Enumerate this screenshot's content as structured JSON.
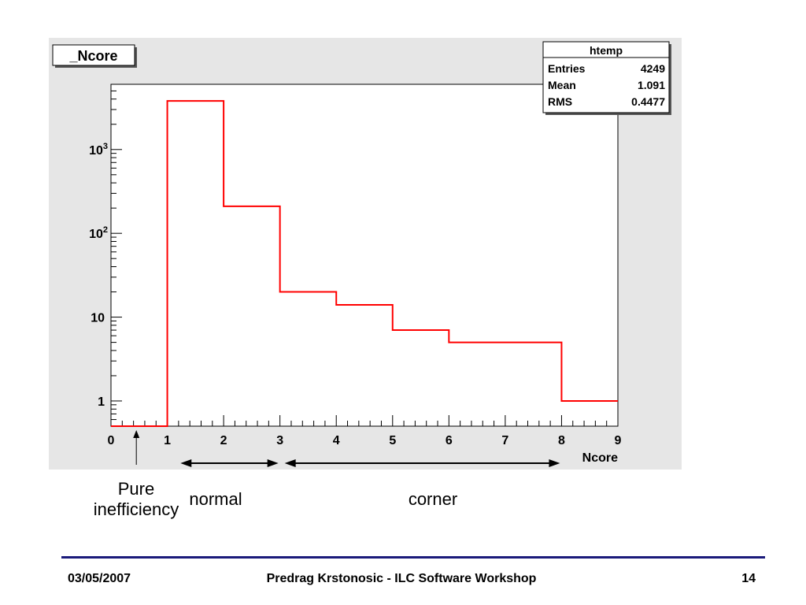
{
  "colors": {
    "canvas": "#e6e6e6",
    "frame": "#ffffff",
    "histogram": "#ff0000",
    "footer_rule": "#1a1a7a"
  },
  "chart_data": {
    "type": "histogram",
    "title": "_Ncore",
    "xlabel": "Ncore",
    "ylabel": "",
    "x_range": [
      0,
      9
    ],
    "y_scale": "log",
    "ylim": [
      0.5,
      6000
    ],
    "x_ticks": [
      "0",
      "1",
      "2",
      "3",
      "4",
      "5",
      "6",
      "7",
      "8",
      "9"
    ],
    "y_ticks": [
      {
        "value": 1,
        "base": "1",
        "exp": ""
      },
      {
        "value": 10,
        "base": "10",
        "exp": ""
      },
      {
        "value": 100,
        "base": "10",
        "exp": "2"
      },
      {
        "value": 1000,
        "base": "10",
        "exp": "3"
      }
    ],
    "bins": [
      {
        "x0": 0,
        "x1": 1,
        "value": 0
      },
      {
        "x0": 1,
        "x1": 2,
        "value": 3800
      },
      {
        "x0": 2,
        "x1": 3,
        "value": 210
      },
      {
        "x0": 3,
        "x1": 4,
        "value": 20
      },
      {
        "x0": 4,
        "x1": 5,
        "value": 14
      },
      {
        "x0": 5,
        "x1": 6,
        "value": 7
      },
      {
        "x0": 6,
        "x1": 8,
        "value": 5
      },
      {
        "x0": 8,
        "x1": 9,
        "value": 1
      }
    ],
    "stats": {
      "name": "htemp",
      "rows": [
        {
          "label": "Entries",
          "value": "4249"
        },
        {
          "label": "Mean",
          "value": "1.091"
        },
        {
          "label": "RMS",
          "value": "0.4477"
        }
      ]
    },
    "annotations": {
      "ranges": [
        {
          "from": 1.15,
          "to": 3.0
        },
        {
          "from": 3.0,
          "to": 8.0
        }
      ],
      "arrow_at": 0.45
    }
  },
  "annotations": {
    "pure_line1": "Pure",
    "pure_line2": "inefficiency",
    "normal": "normal",
    "corner": "corner"
  },
  "footer": {
    "date": "03/05/2007",
    "center": "Predrag Krstonosic - ILC Software Workshop",
    "page": "14"
  }
}
